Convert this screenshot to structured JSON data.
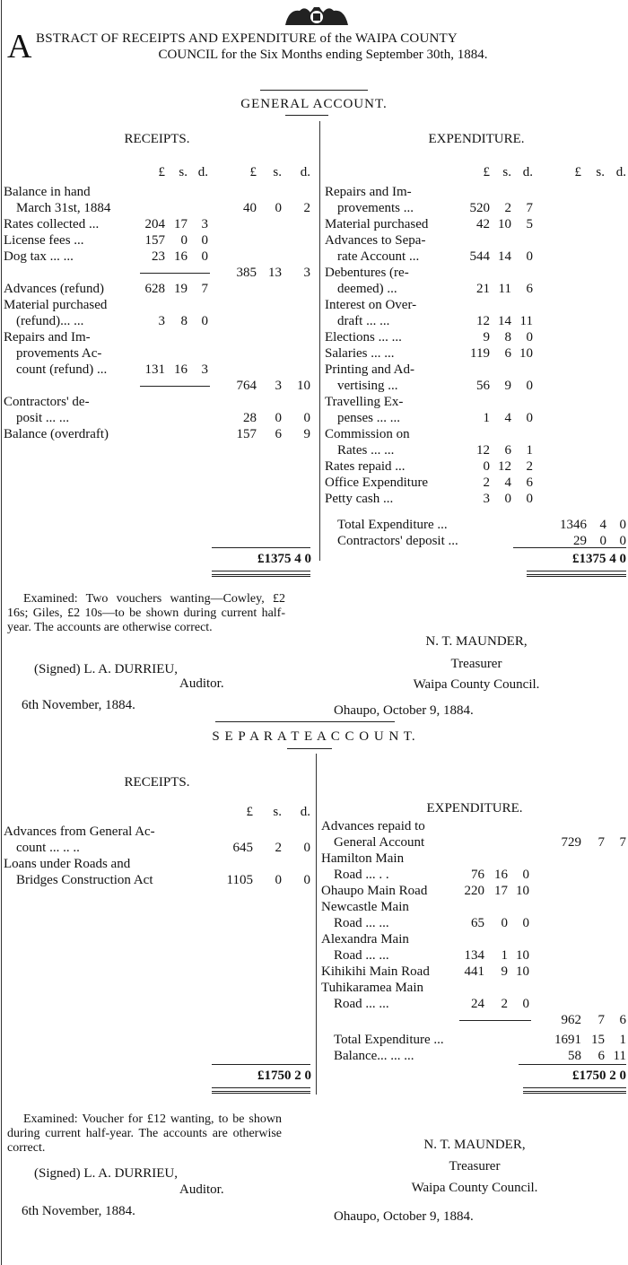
{
  "crest": "royal-coat-of-arms",
  "title": {
    "dropcap": "A",
    "text": "BSTRACT OF RECEIPTS AND EXPENDITURE of the WAIPA COUNTY",
    "line2": "COUNCIL for the Six Months ending September 30th, 1884."
  },
  "general": {
    "heading": "GENERAL   ACCOUNT.",
    "receipts": {
      "heading": "RECEIPTS.",
      "cols": [
        "£",
        "s.",
        "d.",
        "£",
        "s.",
        "d."
      ],
      "rows": [
        [
          "Balance in hand",
          "",
          "",
          "",
          "",
          "",
          ""
        ],
        [
          "March 31st, 1884",
          "",
          "",
          "",
          "40",
          "0",
          "2"
        ],
        [
          "Rates collected  ...",
          "204",
          "17",
          "3",
          "",
          "",
          ""
        ],
        [
          "License fees     ...",
          "157",
          "0",
          "0",
          "",
          "",
          ""
        ],
        [
          "Dog tax   ...      ...",
          "23",
          "16",
          "0",
          "",
          "",
          ""
        ],
        [
          "",
          "",
          "",
          "",
          "385",
          "13",
          "3"
        ],
        [
          "Advances (refund)",
          "628",
          "19",
          "7",
          "",
          "",
          ""
        ],
        [
          "Material purchased",
          "",
          "",
          "",
          "",
          "",
          ""
        ],
        [
          "(refund)...       ...",
          "3",
          "8",
          "0",
          "",
          "",
          ""
        ],
        [
          "Repairs and Im-",
          "",
          "",
          "",
          "",
          "",
          ""
        ],
        [
          "provements Ac-",
          "",
          "",
          "",
          "",
          "",
          ""
        ],
        [
          "count (refund) ...",
          "131",
          "16",
          "3",
          "",
          "",
          ""
        ],
        [
          "",
          "",
          "",
          "",
          "764",
          "3",
          "10"
        ],
        [
          "Contractors'    de-",
          "",
          "",
          "",
          "",
          "",
          ""
        ],
        [
          "posit    ...       ...",
          "",
          "",
          "",
          "28",
          "0",
          "0"
        ],
        [
          "Balance (overdraft)",
          "",
          "",
          "",
          "157",
          "6",
          "9"
        ]
      ],
      "total": "£1375   4   0"
    },
    "expenditure": {
      "heading": "EXPENDITURE.",
      "cols": [
        "£",
        "s.",
        "d.",
        "£",
        "s.",
        "d."
      ],
      "rows": [
        [
          "Repairs and Im-",
          "",
          "",
          ""
        ],
        [
          "provements   ...",
          "520",
          "2",
          "7"
        ],
        [
          "Material purchased",
          "42",
          "10",
          "5"
        ],
        [
          "Advances to Sepa-",
          "",
          "",
          ""
        ],
        [
          "rate Account  ...",
          "544",
          "14",
          "0"
        ],
        [
          "Debentures     (re-",
          "",
          "",
          ""
        ],
        [
          "deemed)        ...",
          "21",
          "11",
          "6"
        ],
        [
          "Interest on Over-",
          "",
          "",
          ""
        ],
        [
          "draft    ...       ...",
          "12",
          "14",
          "11"
        ],
        [
          "Elections ...      ...",
          "9",
          "8",
          "0"
        ],
        [
          "Salaries   ...      ...",
          "119",
          "6",
          "10"
        ],
        [
          "Printing and Ad-",
          "",
          "",
          ""
        ],
        [
          "vertising      ...",
          "56",
          "9",
          "0"
        ],
        [
          "Travelling   Ex-",
          "",
          "",
          ""
        ],
        [
          "penses ...       ...",
          "1",
          "4",
          "0"
        ],
        [
          "Commission    on",
          "",
          "",
          ""
        ],
        [
          "Rates   ...      ...",
          "12",
          "6",
          "1"
        ],
        [
          "Rates repaid    ...",
          "0",
          "12",
          "2"
        ],
        [
          "Office Expenditure",
          "2",
          "4",
          "6"
        ],
        [
          "Petty cash       ...",
          "3",
          "0",
          "0"
        ]
      ],
      "totals": [
        [
          "Total Expenditure    ...",
          "1346",
          "4",
          "0"
        ],
        [
          "Contractors' deposit ...",
          "29",
          "0",
          "0"
        ]
      ],
      "total": "£1375   4   0"
    },
    "auditor_note": "Examined: Two vouchers wanting—Cowley, £2 16s; Giles, £2 10s—to be shown during current half-year. The accounts are otherwise correct.",
    "signed": "(Signed) L. A. DURRIEU,",
    "auditor": "Auditor.",
    "audit_date": "6th November, 1884.",
    "treasurer_name": "N. T. MAUNDER,",
    "treasurer": "Treasurer",
    "council": "Waipa County Council.",
    "place_date": "Ohaupo, October 9, 1884."
  },
  "separate": {
    "heading": "S E P A R A T E    A C C O U N T.",
    "receipts": {
      "heading": "RECEIPTS.",
      "cols": [
        "£",
        "s.",
        "d."
      ],
      "rows": [
        [
          "Advances from General Ac-",
          "",
          "",
          ""
        ],
        [
          "count     ...      ..      ..",
          "645",
          "2",
          "0"
        ],
        [
          "Loans under Roads and",
          "",
          "",
          ""
        ],
        [
          "Bridges Construction Act",
          "1105",
          "0",
          "0"
        ]
      ],
      "total": "£1750   2   0"
    },
    "expenditure": {
      "heading": "EXPENDITURE.",
      "rows": [
        [
          "Advances repaid to",
          "",
          "",
          "",
          "",
          "",
          ""
        ],
        [
          "General Account",
          "",
          "",
          "",
          "729",
          "7",
          "7"
        ],
        [
          "Hamilton       Main",
          "",
          "",
          "",
          "",
          "",
          ""
        ],
        [
          "Road      ...       . .",
          "76",
          "16",
          "0",
          "",
          "",
          ""
        ],
        [
          "Ohaupo Main Road",
          "220",
          "17",
          "10",
          "",
          "",
          ""
        ],
        [
          "Newcastle      Main",
          "",
          "",
          "",
          "",
          "",
          ""
        ],
        [
          "Road      ...       ...",
          "65",
          "0",
          "0",
          "",
          "",
          ""
        ],
        [
          "Alexandra      Main",
          "",
          "",
          "",
          "",
          "",
          ""
        ],
        [
          "Road      ...       ...",
          "134",
          "1",
          "10",
          "",
          "",
          ""
        ],
        [
          "Kihikihi Main Road",
          "441",
          "9",
          "10",
          "",
          "",
          ""
        ],
        [
          "Tuhikaramea Main",
          "",
          "",
          "",
          "",
          "",
          ""
        ],
        [
          "Road      ...       ...",
          "24",
          "2",
          "0",
          "",
          "",
          ""
        ],
        [
          "",
          "",
          "",
          "",
          "962",
          "7",
          "6"
        ]
      ],
      "totals": [
        [
          "Total Expenditure     ...",
          "1691",
          "15",
          "1"
        ],
        [
          "Balance...      ...        ...",
          "58",
          "6",
          "11"
        ]
      ],
      "total": "£1750   2   0"
    },
    "auditor_note": "Examined: Voucher for £12 wanting, to be shown during current half-year. The accounts are otherwise correct.",
    "signed": "(Signed) L. A. DURRIEU,",
    "auditor": "Auditor.",
    "audit_date": "6th November, 1884.",
    "treasurer_name": "N. T. MAUNDER,",
    "treasurer": "Treasurer",
    "council": "Waipa County Council.",
    "place_date": "Ohaupo, October 9, 1884."
  }
}
